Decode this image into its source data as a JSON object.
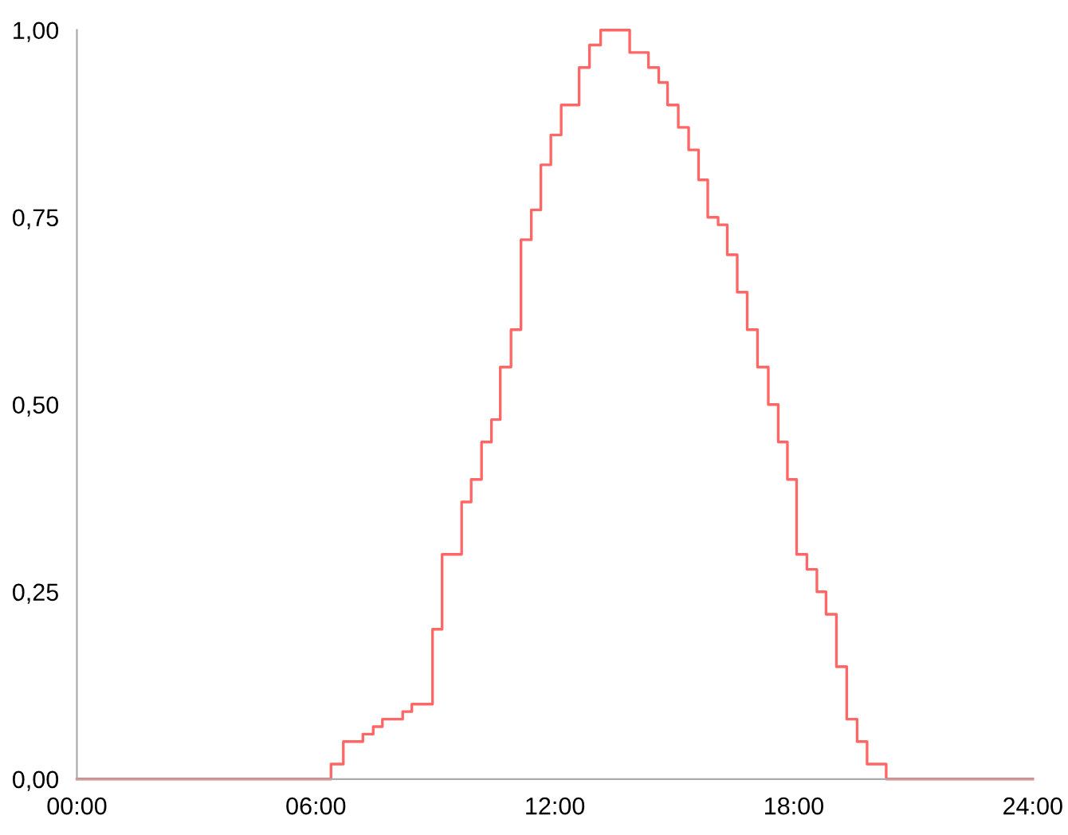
{
  "chart_data": {
    "type": "step",
    "x": [
      0,
      6.38,
      6.69,
      7.18,
      7.44,
      7.67,
      8.18,
      8.41,
      8.93,
      9.17,
      9.66,
      9.9,
      10.16,
      10.41,
      10.63,
      10.9,
      11.15,
      11.41,
      11.65,
      11.9,
      12.16,
      12.61,
      12.87,
      13.15,
      13.88,
      14.35,
      14.61,
      14.83,
      15.1,
      15.36,
      15.61,
      15.84,
      16.1,
      16.33,
      16.58,
      16.83,
      17.09,
      17.36,
      17.61,
      17.84,
      18.07,
      18.33,
      18.58,
      18.81,
      19.07,
      19.33,
      19.59,
      19.84,
      20.32,
      24
    ],
    "series": [
      {
        "color": "#ff6666",
        "values": [
          0,
          0.02,
          0.05,
          0.06,
          0.07,
          0.08,
          0.09,
          0.1,
          0.2,
          0.3,
          0.37,
          0.4,
          0.45,
          0.48,
          0.55,
          0.6,
          0.72,
          0.76,
          0.82,
          0.86,
          0.9,
          0.95,
          0.98,
          1.0,
          0.97,
          0.95,
          0.93,
          0.9,
          0.87,
          0.84,
          0.8,
          0.75,
          0.74,
          0.7,
          0.65,
          0.6,
          0.55,
          0.5,
          0.45,
          0.4,
          0.3,
          0.28,
          0.25,
          0.22,
          0.15,
          0.08,
          0.05,
          0.02,
          0,
          0
        ]
      }
    ],
    "xlim": [
      0,
      24
    ],
    "ylim": [
      0,
      1
    ],
    "xticks": [
      {
        "value": 0,
        "label": "00:00"
      },
      {
        "value": 6,
        "label": "06:00"
      },
      {
        "value": 12,
        "label": "12:00"
      },
      {
        "value": 18,
        "label": "18:00"
      },
      {
        "value": 24,
        "label": "24:00"
      }
    ],
    "yticks": [
      {
        "value": 0,
        "label": "0,00"
      },
      {
        "value": 0.25,
        "label": "0,25"
      },
      {
        "value": 0.5,
        "label": "0,50"
      },
      {
        "value": 0.75,
        "label": "0,75"
      },
      {
        "value": 1,
        "label": "1,00"
      }
    ],
    "grid": false,
    "legend": false
  }
}
